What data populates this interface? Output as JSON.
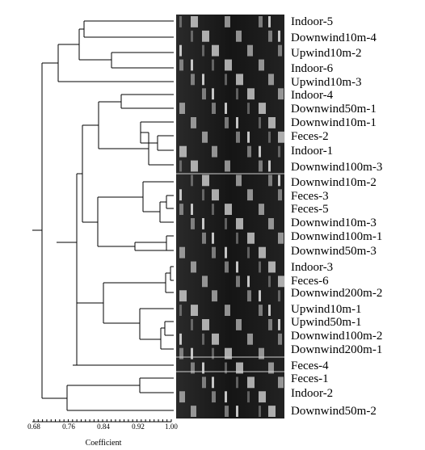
{
  "figure": {
    "axis_title": "Coefficient",
    "tick_labels": [
      "0.68",
      "0.76",
      "0.84",
      "0.92",
      "1.00"
    ]
  },
  "samples": [
    "Indoor-5",
    "Downwind10m-4",
    "Upwind10m-2",
    "Indoor-6",
    "Upwind10m-3",
    "Indoor-4",
    "Downwind50m-1",
    "Downwind10m-1",
    "Feces-2",
    "Indoor-1",
    "Downwind100m-3",
    "Downwind10m-2",
    "Feces-3",
    "Feces-5",
    "Downwind10m-3",
    "Downwind100m-1",
    "Downwind50m-3",
    "Indoor-3",
    "Feces-6",
    "Downwind200m-2",
    "Upwind10m-1",
    "Upwind50m-1",
    "Downwind100m-2",
    "Downwind200m-1",
    "Feces-4",
    "Feces-1",
    "Indoor-2",
    "Downwind50m-2"
  ],
  "colors": {
    "gel_background": "#1a1a1a",
    "band": "#e8e8e8",
    "line": "#000000"
  }
}
